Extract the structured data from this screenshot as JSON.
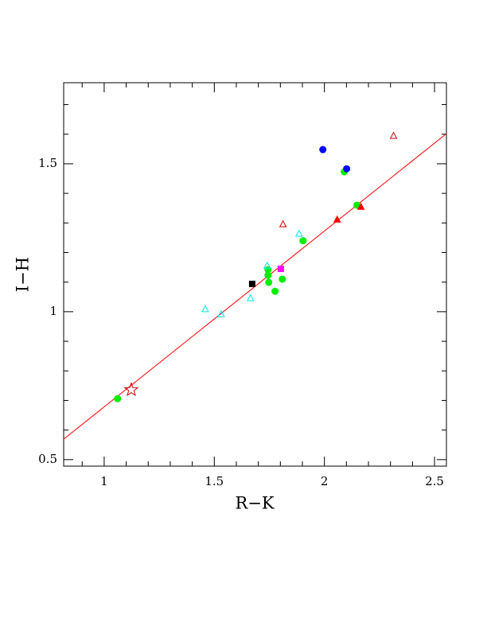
{
  "chart_data": {
    "type": "scatter",
    "xlabel": "R−K",
    "ylabel": "I−H",
    "xlim": [
      0.816,
      2.554
    ],
    "ylim": [
      0.478,
      1.774
    ],
    "xticks": [
      1,
      1.5,
      2,
      2.5
    ],
    "yticks": [
      0.5,
      1,
      1.5
    ],
    "xminorticks": [
      0.9,
      1.1,
      1.2,
      1.3,
      1.4,
      1.6,
      1.7,
      1.8,
      1.9,
      2.1,
      2.2,
      2.3,
      2.4
    ],
    "yminorticks": [
      0.6,
      0.7,
      0.8,
      0.9,
      1.1,
      1.2,
      1.3,
      1.4,
      1.6,
      1.7
    ],
    "fit_line": {
      "color": "#ff0000",
      "x": [
        0.816,
        2.554
      ],
      "y": [
        0.569,
        1.602
      ]
    },
    "series": [
      {
        "marker": "circle",
        "filled": true,
        "color": "#00ee00",
        "x": [
          1.061,
          2.09,
          2.148,
          1.903,
          1.744,
          1.744,
          1.747,
          1.776,
          1.809
        ],
        "y": [
          0.706,
          1.473,
          1.36,
          1.24,
          1.142,
          1.123,
          1.099,
          1.069,
          1.11
        ]
      },
      {
        "marker": "square",
        "filled": true,
        "color": "#000000",
        "x": [
          1.672
        ],
        "y": [
          1.094
        ]
      },
      {
        "marker": "square",
        "filled": true,
        "color": "#ff00ff",
        "x": [
          1.802
        ],
        "y": [
          1.145
        ]
      },
      {
        "marker": "circle",
        "filled": true,
        "color": "#0000ff",
        "x": [
          1.993,
          2.101
        ],
        "y": [
          1.548,
          1.483
        ]
      },
      {
        "marker": "triangle",
        "filled": true,
        "color": "#ff0000",
        "x": [
          2.058,
          2.166
        ],
        "y": [
          1.311,
          1.354
        ]
      },
      {
        "marker": "triangle",
        "filled": false,
        "color": "#cc0000",
        "x": [
          1.812,
          2.314
        ],
        "y": [
          1.295,
          1.594
        ]
      },
      {
        "marker": "triangle",
        "filled": false,
        "color": "#00e5ee",
        "x": [
          1.459,
          1.531,
          1.664,
          1.74,
          1.885
        ],
        "y": [
          1.008,
          0.991,
          1.045,
          1.155,
          1.263
        ]
      },
      {
        "marker": "star",
        "filled": false,
        "color": "#cc0000",
        "x": [
          1.123
        ],
        "y": [
          0.736
        ]
      }
    ]
  }
}
